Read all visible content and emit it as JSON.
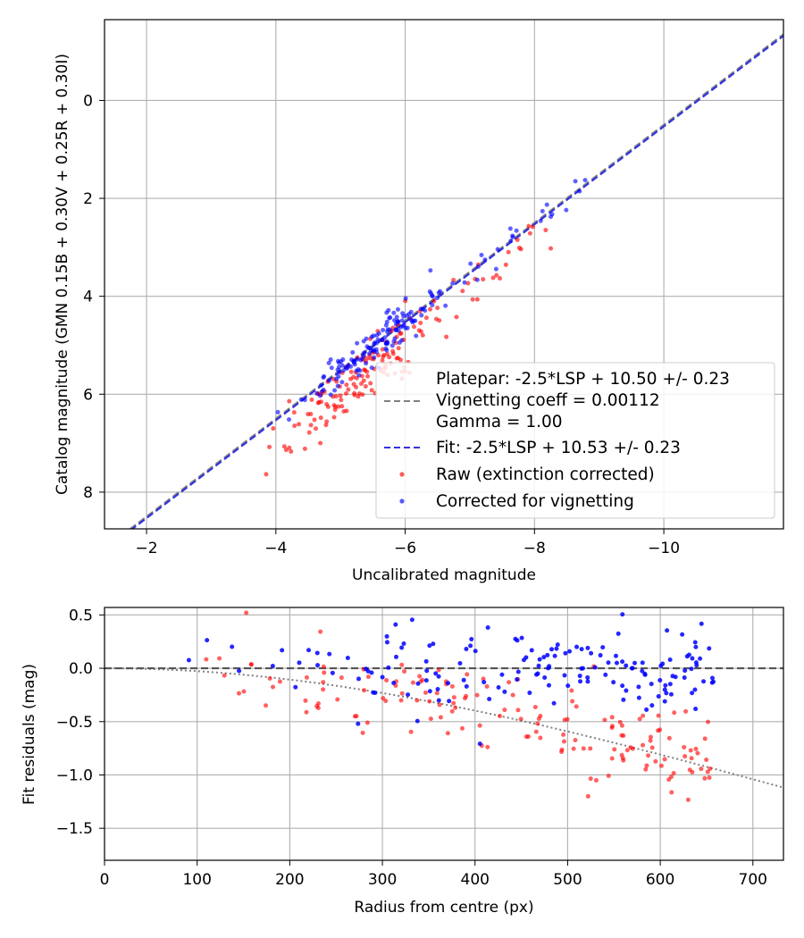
{
  "chart_data": [
    {
      "type": "scatter",
      "title": "",
      "xlabel": "Uncalibrated magnitude",
      "ylabel": "Catalog magnitude (GMN 0.15B + 0.30V + 0.25R + 0.30I)",
      "xlim": [
        -1.35,
        -11.85
      ],
      "ylim": [
        8.75,
        -1.65
      ],
      "x_inverted": true,
      "y_inverted": true,
      "xticks": [
        -2,
        -4,
        -6,
        -8,
        -10
      ],
      "xtick_labels": [
        "−2",
        "−4",
        "−6",
        "−8",
        "−10"
      ],
      "yticks": [
        0,
        2,
        4,
        6,
        8
      ],
      "ytick_labels": [
        "0",
        "2",
        "4",
        "6",
        "8"
      ],
      "grid": true,
      "legend_position": "lower-right",
      "legend": [
        {
          "label": "Platepar: -2.5*LSP + 10.50 +/- 0.23",
          "style": "none"
        },
        {
          "label": "Vignetting coeff = 0.00112",
          "style": "dashed",
          "color": "#808080"
        },
        {
          "label": "Gamma = 1.00",
          "style": "none"
        },
        {
          "label": "Fit: -2.5*LSP + 10.53 +/- 0.23",
          "style": "dashed",
          "color": "#3333dd"
        },
        {
          "label": "Raw (extinction corrected)",
          "style": "marker",
          "color": "#ff0000"
        },
        {
          "label": "Corrected for vignetting",
          "style": "marker",
          "color": "#0000ff"
        }
      ],
      "lines": [
        {
          "name": "Platepar fit",
          "intercept": 10.5,
          "slope": -2.5,
          "style": "dashed",
          "color": "#808080"
        },
        {
          "name": "Fit",
          "intercept": 10.53,
          "slope": -2.5,
          "style": "dashed",
          "color": "#3333dd"
        }
      ],
      "series": [
        {
          "name": "Raw (extinction corrected)",
          "color": "#ff0000",
          "seed": 11,
          "n": 165,
          "cluster": {
            "x_center": -5.3,
            "x_spread": 0.5,
            "offset": 0.42,
            "scatter": 0.3
          },
          "tail": {
            "x_from": -6.2,
            "x_to": -8.3,
            "n": 30,
            "offset": 0.35,
            "scatter": 0.25
          }
        },
        {
          "name": "Corrected for vignetting",
          "color": "#0000ff",
          "seed": 29,
          "n": 165,
          "cluster": {
            "x_center": -5.5,
            "x_spread": 0.5,
            "offset": 0.0,
            "scatter": 0.2
          },
          "tail": {
            "x_from": -6.2,
            "x_to": -8.8,
            "n": 30,
            "offset": 0.0,
            "scatter": 0.15
          }
        }
      ]
    },
    {
      "type": "scatter",
      "title": "",
      "xlabel": "Radius from centre (px)",
      "ylabel": "Fit residuals (mag)",
      "xlim": [
        0,
        733
      ],
      "ylim": [
        -1.8,
        0.57
      ],
      "xticks": [
        0,
        100,
        200,
        300,
        400,
        500,
        600,
        700
      ],
      "xtick_labels": [
        "0",
        "100",
        "200",
        "300",
        "400",
        "500",
        "600",
        "700"
      ],
      "yticks": [
        0.5,
        0.0,
        -0.5,
        -1.0,
        -1.5
      ],
      "ytick_labels": [
        "0.5",
        "0.0",
        "−0.5",
        "−1.0",
        "−1.5"
      ],
      "grid": true,
      "lines": [
        {
          "name": "zero line",
          "type": "horizontal",
          "y": 0,
          "style": "dashed",
          "color": "#555555"
        },
        {
          "name": "vignetting model",
          "type": "curve",
          "coefficient": 0.00112,
          "style": "dotted",
          "color": "#808080"
        }
      ],
      "series": [
        {
          "name": "Raw (extinction corrected)",
          "color": "#ff0000",
          "seed": 47,
          "n": 160,
          "radius_range": [
            35,
            660
          ],
          "trend": "vignetting",
          "scatter": 0.2
        },
        {
          "name": "Corrected for vignetting",
          "color": "#0000ff",
          "seed": 83,
          "n": 160,
          "radius_range": [
            35,
            660
          ],
          "trend": "flat",
          "scatter": 0.2
        }
      ]
    }
  ]
}
